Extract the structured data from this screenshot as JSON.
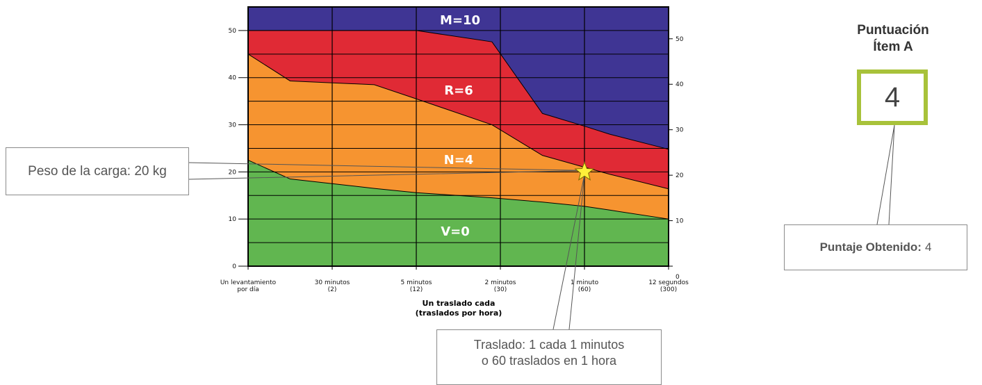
{
  "chart_data": {
    "type": "area",
    "categories": [
      {
        "line1": "Un levantamiento",
        "line2": "por día"
      },
      {
        "line1": "30 minutos",
        "line2": "(2)"
      },
      {
        "line1": "5 minutos",
        "line2": "(12)"
      },
      {
        "line1": "2 minutos",
        "line2": "(30)"
      },
      {
        "line1": "1 minuto",
        "line2": "(60)"
      },
      {
        "line1": "12 segundos",
        "line2": "(300)"
      }
    ],
    "xlabel": [
      "Un traslado cada",
      "(traslados por hora)"
    ],
    "left_axis": {
      "ticks": [
        "0",
        "10",
        "20",
        "30",
        "40",
        "50"
      ],
      "range": [
        0,
        55
      ]
    },
    "right_axis": {
      "ticks": [
        "0",
        "10",
        "20",
        "30",
        "40",
        "50"
      ],
      "range": [
        0,
        57
      ]
    },
    "zones": [
      {
        "label": "V=0",
        "color": "#61b650"
      },
      {
        "label": "N=4",
        "color": "#f69430"
      },
      {
        "label": "R=6",
        "color": "#e02a35"
      },
      {
        "label": "M=10",
        "color": "#3f3594"
      }
    ],
    "boundaries": {
      "x": [
        0,
        0.5,
        1.5,
        2.0,
        2.9,
        3.5,
        4.0,
        4.3,
        5.0
      ],
      "v_n": [
        22.5,
        18.5,
        16.5,
        15.6,
        14.5,
        13.6,
        12.7,
        11.9,
        10.0
      ],
      "n_r": [
        45.0,
        39.3,
        38.5,
        35.5,
        30.0,
        23.5,
        21.0,
        19.5,
        16.4
      ],
      "r_m": [
        50.0,
        50.0,
        50.0,
        50.0,
        47.6,
        32.4,
        29.7,
        28.0,
        24.8
      ]
    },
    "marker": {
      "x": 4.0,
      "y": 20.0,
      "color": "#ffef3a"
    }
  },
  "callouts": {
    "load": "Peso de la carga: 20 kg",
    "transfer_line1": "Traslado: 1 cada 1 minutos",
    "transfer_line2": "o 60 traslados en 1 hora"
  },
  "score": {
    "title_line1": "Puntuación",
    "title_line2": "Ítem A",
    "value": "4",
    "obtained_label": "Puntaje Obtenido:",
    "obtained_value": "4",
    "box_color": "#a8c23a"
  }
}
